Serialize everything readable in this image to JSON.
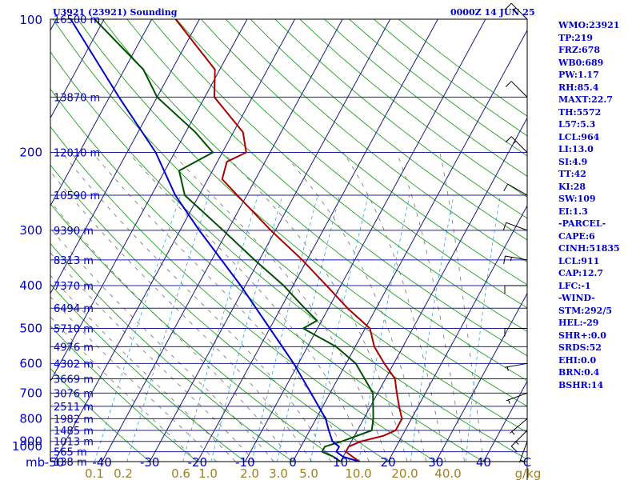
{
  "header": {
    "station": "U3921 (23921) Sounding",
    "time": "0000Z 14 JUN 25"
  },
  "indices": [
    "WMO:23921",
    "TP:219",
    "FRZ:678",
    "WB0:689",
    "PW:1.17",
    "RH:85.4",
    "MAXT:22.7",
    "TH:5572",
    "L57:5.3",
    "LCL:964",
    "LI:13.0",
    "SI:4.9",
    "TT:42",
    "KI:28",
    "SW:109",
    "EI:1.3",
    "-PARCEL-",
    "CAPE:6",
    "CINH:51835",
    "LCL:911",
    "CAP:12.7",
    "LFC:-1",
    "-WIND-",
    "STM:292/5",
    "HEL:-29",
    "SHR+:0.0",
    "SRDS:52",
    "EHI:0.0",
    "BRN:0.4",
    "BSHR:14"
  ],
  "colors": {
    "isobar": "#2020a0",
    "isotherm": "#1a1a80",
    "dry_adiabat": "#20a020",
    "moist_adiabat": "#707070",
    "mixing_ratio": "#30a0e0",
    "temperature": "#aa0000",
    "dewpoint": "#005000",
    "parcel": "#0000cc",
    "label": "#0000cc",
    "mixing_label": "#a08020"
  },
  "chart_data": {
    "type": "skew-t",
    "title": "U3921 (23921) Sounding",
    "xlabel": "",
    "ylabel": "mb",
    "x_unit": "C",
    "mixing_unit": "g/kg",
    "xlim": [
      -50,
      50
    ],
    "pressure_levels": [
      100,
      200,
      300,
      400,
      500,
      600,
      700,
      800,
      900,
      1000
    ],
    "temperature_ticks": [
      -50,
      -40,
      -30,
      -20,
      -10,
      0,
      10,
      20,
      30,
      40
    ],
    "mixing_ratio_labels": [
      "0.1",
      "0.2",
      "0.6",
      "1.0",
      "2.0",
      "3.0",
      "5.0",
      "10.0",
      "20.0",
      "40.0"
    ],
    "height_labels": [
      {
        "p": 100,
        "h": "16500 m"
      },
      {
        "p": 150,
        "h": "13870 m"
      },
      {
        "p": 200,
        "h": "12010 m"
      },
      {
        "p": 250,
        "h": "10590 m"
      },
      {
        "p": 300,
        "h": "9390 m"
      },
      {
        "p": 350,
        "h": "8313 m"
      },
      {
        "p": 400,
        "h": "7370 m"
      },
      {
        "p": 450,
        "h": "6494 m"
      },
      {
        "p": 500,
        "h": "5710 m"
      },
      {
        "p": 550,
        "h": "4976 m"
      },
      {
        "p": 600,
        "h": "4302 m"
      },
      {
        "p": 650,
        "h": "3669 m"
      },
      {
        "p": 700,
        "h": "3076 m"
      },
      {
        "p": 750,
        "h": "2511 m"
      },
      {
        "p": 800,
        "h": "1982 m"
      },
      {
        "p": 850,
        "h": "1485 m"
      },
      {
        "p": 900,
        "h": "1013 m"
      },
      {
        "p": 950,
        "h": "565 m"
      },
      {
        "p": 1000,
        "h": "138 m"
      }
    ],
    "series": [
      {
        "key": "temperature",
        "points": [
          {
            "p": 1000,
            "t": 14
          },
          {
            "p": 975,
            "t": 12
          },
          {
            "p": 950,
            "t": 10
          },
          {
            "p": 925,
            "t": 10
          },
          {
            "p": 900,
            "t": 12
          },
          {
            "p": 875,
            "t": 16
          },
          {
            "p": 850,
            "t": 18
          },
          {
            "p": 800,
            "t": 18
          },
          {
            "p": 750,
            "t": 16
          },
          {
            "p": 700,
            "t": 14
          },
          {
            "p": 650,
            "t": 12
          },
          {
            "p": 600,
            "t": 8
          },
          {
            "p": 550,
            "t": 4
          },
          {
            "p": 500,
            "t": 1
          },
          {
            "p": 450,
            "t": -6
          },
          {
            "p": 400,
            "t": -13
          },
          {
            "p": 350,
            "t": -21
          },
          {
            "p": 300,
            "t": -31
          },
          {
            "p": 250,
            "t": -42
          },
          {
            "p": 230,
            "t": -47
          },
          {
            "p": 210,
            "t": -48
          },
          {
            "p": 200,
            "t": -45
          },
          {
            "p": 180,
            "t": -48
          },
          {
            "p": 150,
            "t": -58
          },
          {
            "p": 130,
            "t": -61
          },
          {
            "p": 100,
            "t": -75
          }
        ]
      },
      {
        "key": "dewpoint",
        "points": [
          {
            "p": 1000,
            "t": 10
          },
          {
            "p": 975,
            "t": 8
          },
          {
            "p": 950,
            "t": 5
          },
          {
            "p": 925,
            "t": 5
          },
          {
            "p": 900,
            "t": 8
          },
          {
            "p": 850,
            "t": 13
          },
          {
            "p": 800,
            "t": 12
          },
          {
            "p": 700,
            "t": 9
          },
          {
            "p": 600,
            "t": 2
          },
          {
            "p": 550,
            "t": -4
          },
          {
            "p": 500,
            "t": -13
          },
          {
            "p": 480,
            "t": -11
          },
          {
            "p": 450,
            "t": -15
          },
          {
            "p": 400,
            "t": -22
          },
          {
            "p": 350,
            "t": -31
          },
          {
            "p": 300,
            "t": -41
          },
          {
            "p": 250,
            "t": -53
          },
          {
            "p": 220,
            "t": -57
          },
          {
            "p": 200,
            "t": -52
          },
          {
            "p": 180,
            "t": -58
          },
          {
            "p": 150,
            "t": -70
          },
          {
            "p": 130,
            "t": -76
          },
          {
            "p": 100,
            "t": -92
          }
        ]
      },
      {
        "key": "parcel",
        "points": [
          {
            "p": 1000,
            "t": 14
          },
          {
            "p": 975,
            "t": 10
          },
          {
            "p": 950,
            "t": 8
          },
          {
            "p": 925,
            "t": 8
          },
          {
            "p": 900,
            "t": 6
          },
          {
            "p": 850,
            "t": 4
          },
          {
            "p": 800,
            "t": 2
          },
          {
            "p": 700,
            "t": -4
          },
          {
            "p": 600,
            "t": -11
          },
          {
            "p": 500,
            "t": -20
          },
          {
            "p": 400,
            "t": -31
          },
          {
            "p": 300,
            "t": -46
          },
          {
            "p": 250,
            "t": -55
          },
          {
            "p": 200,
            "t": -64
          },
          {
            "p": 150,
            "t": -78
          },
          {
            "p": 100,
            "t": -97
          }
        ]
      }
    ],
    "wind_barbs": [
      {
        "p": 100,
        "dir": 315,
        "spd": 15
      },
      {
        "p": 150,
        "dir": 315,
        "spd": 10
      },
      {
        "p": 200,
        "dir": 315,
        "spd": 15
      },
      {
        "p": 250,
        "dir": 300,
        "spd": 10
      },
      {
        "p": 300,
        "dir": 290,
        "spd": 10
      },
      {
        "p": 350,
        "dir": 280,
        "spd": 15
      },
      {
        "p": 400,
        "dir": 270,
        "spd": 10
      },
      {
        "p": 500,
        "dir": 270,
        "spd": 10
      },
      {
        "p": 600,
        "dir": 260,
        "spd": 5
      },
      {
        "p": 700,
        "dir": 250,
        "spd": 5
      },
      {
        "p": 800,
        "dir": 230,
        "spd": 5
      },
      {
        "p": 850,
        "dir": 225,
        "spd": 15
      },
      {
        "p": 900,
        "dir": 200,
        "spd": 5
      },
      {
        "p": 1000,
        "dir": 180,
        "spd": 5
      }
    ]
  }
}
